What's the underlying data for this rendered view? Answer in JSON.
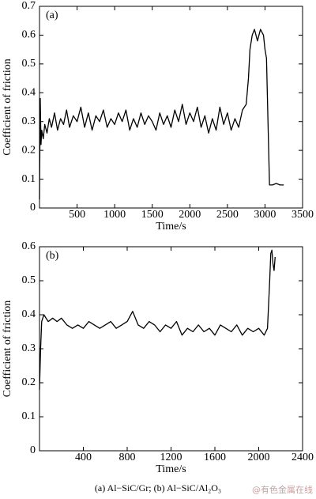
{
  "chart_data": [
    {
      "type": "line",
      "label": "(a)",
      "xlabel": "Time/s",
      "ylabel": "Coefficient of friction",
      "color": "#000000",
      "xlim": [
        0,
        3500
      ],
      "xticks": [
        500,
        1000,
        1500,
        2000,
        2500,
        3000,
        3500
      ],
      "ylim": [
        0,
        0.7
      ],
      "yticks": [
        0,
        0.1,
        0.2,
        0.3,
        0.4,
        0.5,
        0.6,
        0.7
      ],
      "x": [
        0,
        10,
        20,
        30,
        50,
        70,
        100,
        130,
        160,
        200,
        240,
        280,
        320,
        360,
        400,
        450,
        500,
        550,
        600,
        650,
        700,
        750,
        800,
        850,
        900,
        950,
        1000,
        1050,
        1100,
        1150,
        1200,
        1250,
        1300,
        1350,
        1400,
        1450,
        1500,
        1550,
        1600,
        1650,
        1700,
        1750,
        1800,
        1850,
        1900,
        1950,
        2000,
        2050,
        2100,
        2150,
        2200,
        2250,
        2300,
        2350,
        2400,
        2450,
        2500,
        2550,
        2600,
        2650,
        2700,
        2750,
        2780,
        2800,
        2830,
        2860,
        2900,
        2940,
        2980,
        3000,
        3020,
        3040,
        3060,
        3100,
        3150,
        3200,
        3250
      ],
      "values": [
        0.03,
        0.38,
        0.22,
        0.27,
        0.24,
        0.29,
        0.26,
        0.31,
        0.28,
        0.33,
        0.27,
        0.31,
        0.29,
        0.34,
        0.28,
        0.32,
        0.3,
        0.35,
        0.28,
        0.33,
        0.27,
        0.32,
        0.3,
        0.34,
        0.28,
        0.31,
        0.29,
        0.33,
        0.3,
        0.34,
        0.27,
        0.31,
        0.28,
        0.33,
        0.29,
        0.32,
        0.3,
        0.27,
        0.33,
        0.29,
        0.32,
        0.28,
        0.34,
        0.3,
        0.36,
        0.29,
        0.33,
        0.3,
        0.35,
        0.28,
        0.32,
        0.26,
        0.31,
        0.27,
        0.35,
        0.29,
        0.33,
        0.27,
        0.31,
        0.28,
        0.34,
        0.36,
        0.45,
        0.55,
        0.6,
        0.62,
        0.58,
        0.62,
        0.6,
        0.55,
        0.52,
        0.3,
        0.08,
        0.08,
        0.085,
        0.08,
        0.08
      ]
    },
    {
      "type": "line",
      "label": "(b)",
      "xlabel": "Time/s",
      "ylabel": "Coefficient of friction",
      "color": "#000000",
      "xlim": [
        0,
        2400
      ],
      "xticks": [
        400,
        800,
        1200,
        1600,
        2000,
        2400
      ],
      "ylim": [
        0,
        0.6
      ],
      "yticks": [
        0,
        0.1,
        0.2,
        0.3,
        0.4,
        0.5,
        0.6
      ],
      "x": [
        0,
        10,
        20,
        40,
        80,
        120,
        160,
        200,
        250,
        300,
        350,
        400,
        450,
        500,
        550,
        600,
        650,
        700,
        750,
        800,
        850,
        900,
        950,
        1000,
        1050,
        1100,
        1150,
        1200,
        1250,
        1300,
        1350,
        1400,
        1450,
        1500,
        1550,
        1600,
        1650,
        1700,
        1750,
        1800,
        1850,
        1900,
        1950,
        2000,
        2050,
        2080,
        2100,
        2110,
        2120,
        2130,
        2140,
        2150
      ],
      "values": [
        0.18,
        0.3,
        0.38,
        0.4,
        0.38,
        0.39,
        0.38,
        0.39,
        0.37,
        0.36,
        0.37,
        0.36,
        0.38,
        0.37,
        0.36,
        0.37,
        0.38,
        0.36,
        0.37,
        0.38,
        0.41,
        0.37,
        0.36,
        0.38,
        0.37,
        0.35,
        0.37,
        0.36,
        0.38,
        0.34,
        0.36,
        0.35,
        0.37,
        0.35,
        0.36,
        0.34,
        0.37,
        0.36,
        0.35,
        0.37,
        0.34,
        0.36,
        0.35,
        0.36,
        0.34,
        0.36,
        0.5,
        0.58,
        0.59,
        0.55,
        0.53,
        0.57
      ]
    }
  ],
  "caption": "(a) Al−SiC/Gr; (b) Al−SiC/Al₂O₃",
  "watermark": "@有色金属在线"
}
